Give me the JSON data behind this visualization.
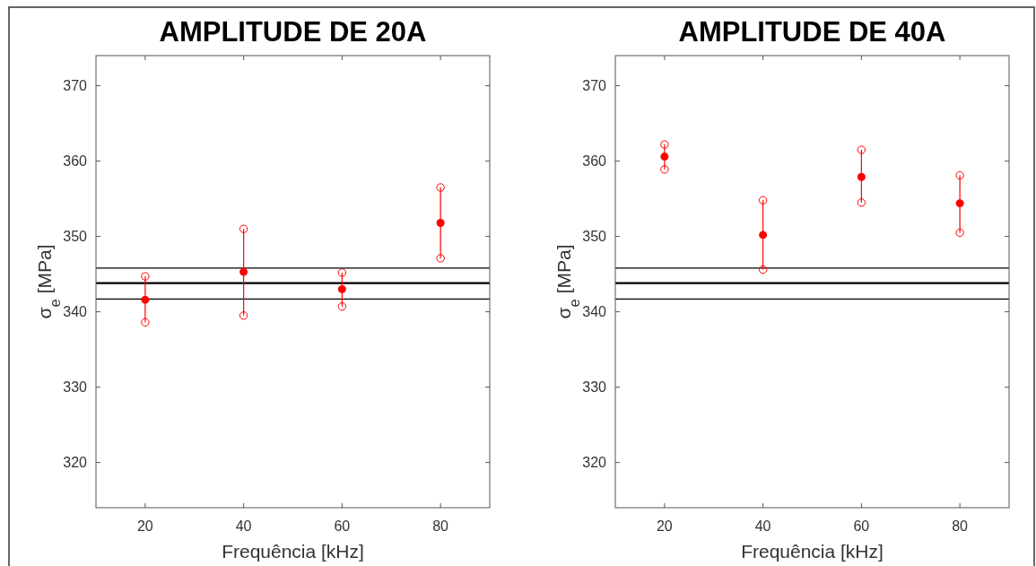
{
  "chart_data": [
    {
      "type": "scatter",
      "title": "AMPLITUDE DE 20A",
      "xlabel": "Frequência [kHz]",
      "ylabel": "σ$_{e}$ [MPa]",
      "x": [
        20,
        40,
        60,
        80
      ],
      "xlim": [
        10,
        90
      ],
      "xticks": [
        20,
        40,
        60,
        80
      ],
      "ylim": [
        314,
        374
      ],
      "yticks": [
        320,
        330,
        340,
        350,
        360,
        370
      ],
      "marker": "circle",
      "grid": false,
      "series": [
        {
          "color": "#ff0000",
          "values": [
            341.6,
            345.3,
            343.0,
            351.8
          ],
          "errors": [
            [
              338.6,
              344.7
            ],
            [
              339.5,
              351.0
            ],
            [
              340.7,
              345.2
            ],
            [
              347.1,
              356.5
            ]
          ]
        },
        {
          "color": "#ff0000",
          "values": [
            344.7,
            351.0,
            345.2,
            356.5
          ]
        },
        {
          "color": "#ff0000",
          "values": [
            338.6,
            339.5,
            340.7,
            347.1
          ]
        }
      ],
      "ref_lines": [
        {
          "axis": "y",
          "value": 345.8,
          "color": "#000000"
        },
        {
          "axis": "y",
          "value": 343.8,
          "color": "#000000"
        },
        {
          "axis": "y",
          "value": 341.7,
          "color": "#000000"
        }
      ]
    },
    {
      "type": "scatter",
      "title": "AMPLITUDE DE 40A",
      "xlabel": "Frequência [kHz]",
      "ylabel": "σ$_{e}$ [MPa]",
      "x": [
        20,
        40,
        60,
        80
      ],
      "xlim": [
        10,
        90
      ],
      "xticks": [
        20,
        40,
        60,
        80
      ],
      "ylim": [
        314,
        374
      ],
      "yticks": [
        320,
        330,
        340,
        350,
        360,
        370
      ],
      "marker": "circle",
      "grid": false,
      "series": [
        {
          "color": "#ff0000",
          "values": [
            360.6,
            350.2,
            357.9,
            354.4
          ],
          "errors": [
            [
              358.9,
              362.2
            ],
            [
              345.6,
              354.8
            ],
            [
              354.5,
              361.5
            ],
            [
              350.5,
              358.1
            ]
          ]
        },
        {
          "color": "#ff0000",
          "values": [
            362.2,
            354.8,
            361.5,
            358.1
          ]
        },
        {
          "color": "#ff0000",
          "values": [
            358.9,
            345.6,
            354.5,
            350.5
          ]
        }
      ],
      "ref_lines": [
        {
          "axis": "y",
          "value": 345.8,
          "color": "#000000"
        },
        {
          "axis": "y",
          "value": 343.8,
          "color": "#000000"
        },
        {
          "axis": "y",
          "value": 341.7,
          "color": "#000000"
        }
      ]
    }
  ]
}
